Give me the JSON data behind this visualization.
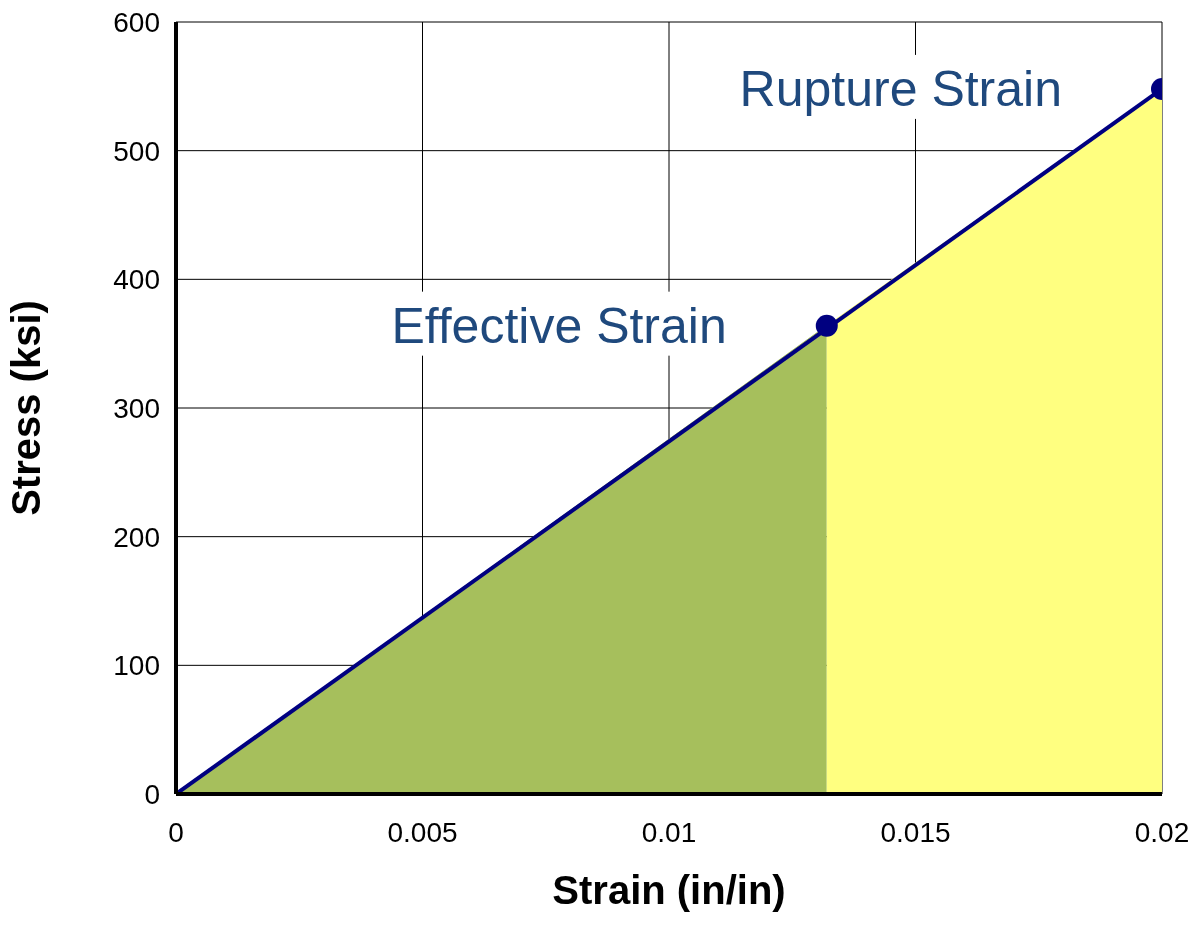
{
  "chart_data": {
    "type": "line",
    "xlabel": "Strain (in/in)",
    "ylabel": "Stress (ksi)",
    "xlim": [
      0,
      0.02
    ],
    "xticks": [
      0,
      0.005,
      0.01,
      0.015,
      0.02
    ],
    "ylim": [
      0,
      600
    ],
    "yticks": [
      0,
      100,
      200,
      300,
      400,
      500,
      600
    ],
    "grid": true,
    "series": [
      {
        "type": "area",
        "color": "#a6bf5c",
        "x": [
          0,
          0.0132
        ],
        "values": [
          0,
          364
        ]
      },
      {
        "type": "area",
        "color": "#ffff80",
        "x": [
          0.0132,
          0.02
        ],
        "values": [
          364,
          548
        ]
      },
      {
        "color": "#000080",
        "x": [
          0,
          0.02
        ],
        "values": [
          0,
          548
        ]
      },
      {
        "type": "scatter",
        "color": "#000080",
        "marker": "circle",
        "x": [
          0.0132,
          0.02
        ],
        "values": [
          364,
          548
        ]
      }
    ],
    "annotations": [
      {
        "text": "Effective Strain",
        "x": 0.0132,
        "y": 364
      },
      {
        "text": "Rupture Strain",
        "x": 0.02,
        "y": 548
      }
    ]
  }
}
